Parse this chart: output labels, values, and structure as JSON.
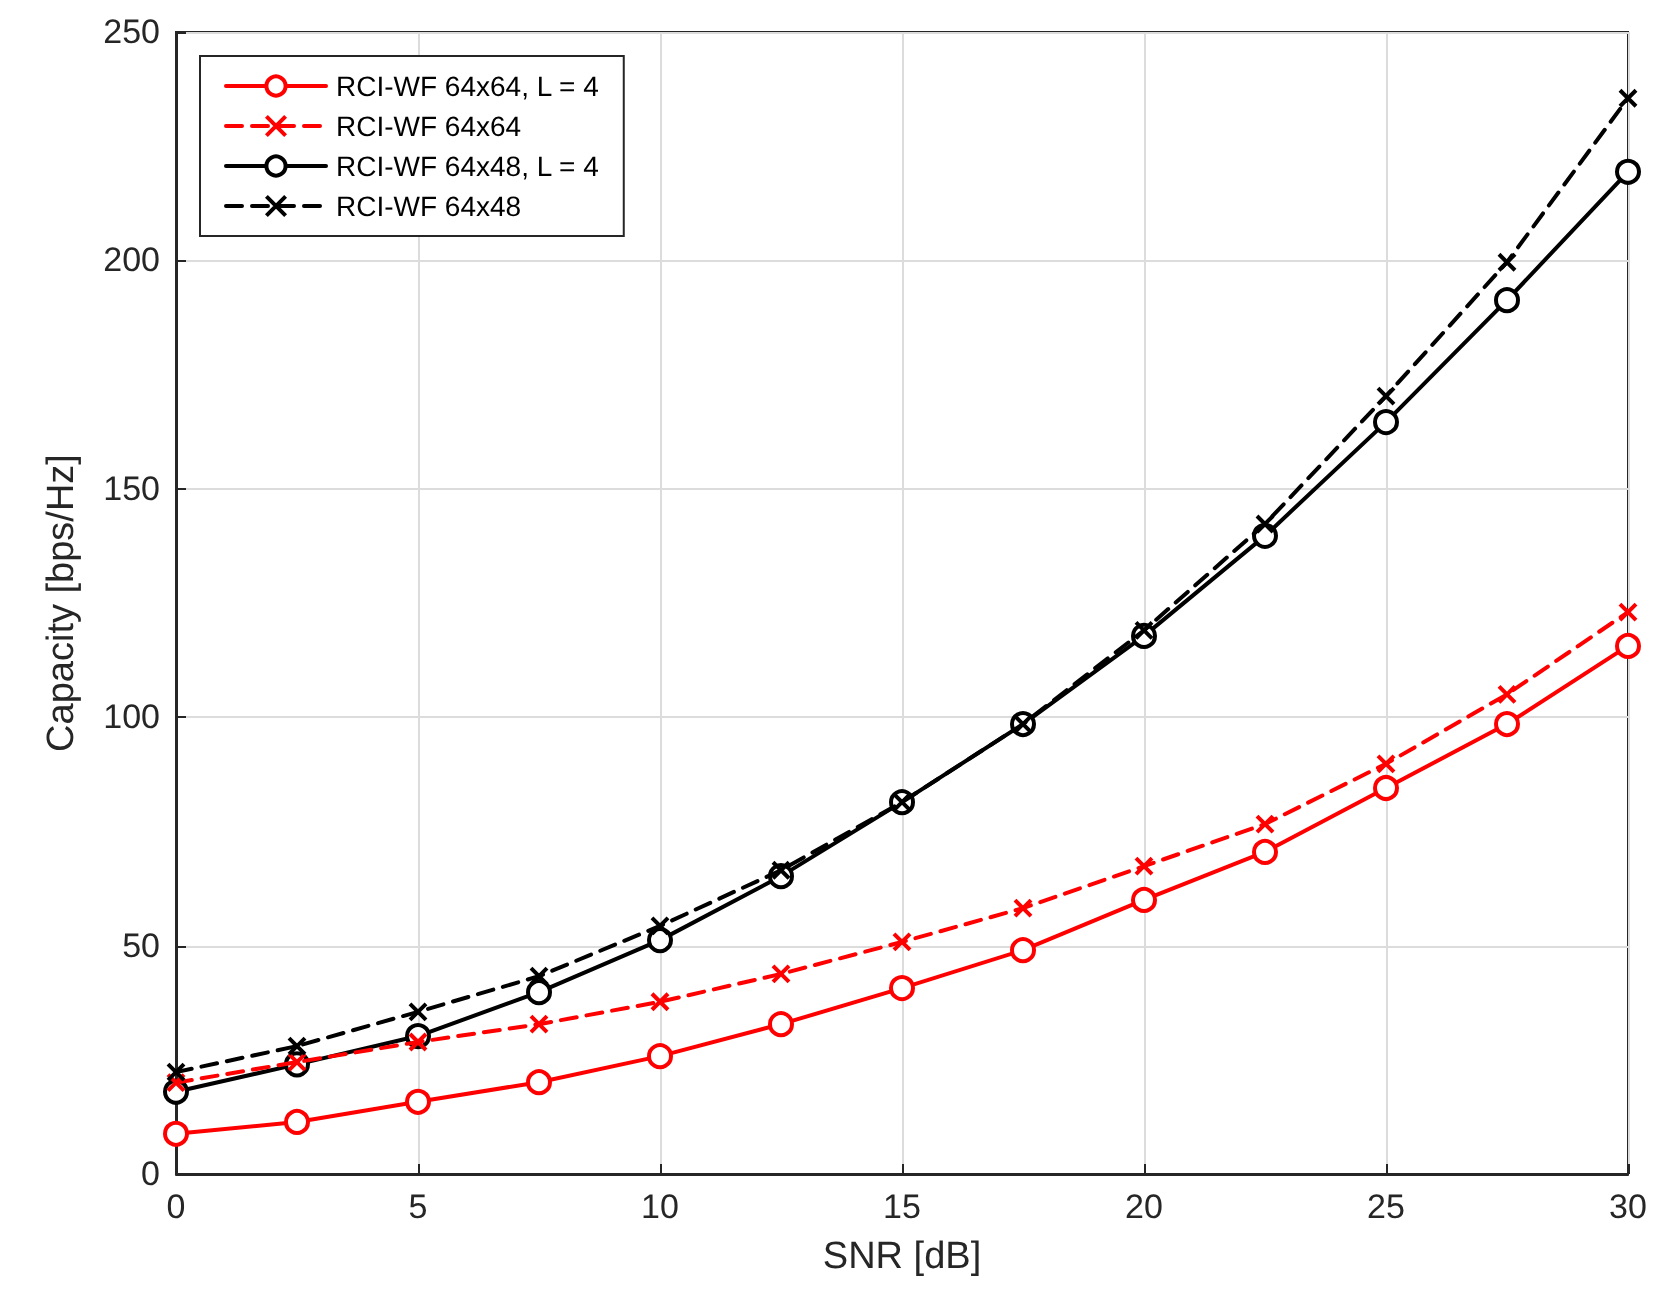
{
  "chart_data": {
    "type": "line",
    "xlabel": "SNR [dB]",
    "ylabel": "Capacity [bps/Hz]",
    "x": [
      0,
      2.5,
      5,
      7.5,
      10,
      12.5,
      15,
      17.5,
      20,
      22.5,
      25,
      27.5,
      30
    ],
    "series": [
      {
        "name": "RCI-WF 64x64, L = 4",
        "color": "#ff0000",
        "marker": "circle",
        "line_style": "solid",
        "values": [
          8.8,
          11.4,
          15.8,
          20.1,
          25.8,
          32.8,
          40.7,
          49,
          60,
          70.5,
          84.5,
          98.5,
          115.6
        ]
      },
      {
        "name": "RCI-WF 64x64",
        "color": "#ff0000",
        "marker": "cross",
        "line_style": "dashed",
        "values": [
          20,
          24.5,
          28.9,
          32.8,
          37.7,
          43.8,
          50.8,
          58.2,
          67.4,
          76.6,
          89.8,
          105,
          123
        ]
      },
      {
        "name": "RCI-WF 64x48, L = 4",
        "color": "#000000",
        "marker": "circle",
        "line_style": "solid",
        "values": [
          18,
          24,
          30.2,
          39.8,
          51.2,
          65.2,
          81.4,
          98.5,
          117.8,
          139.7,
          164.6,
          191.3,
          219.4
        ]
      },
      {
        "name": "RCI-WF 64x48",
        "color": "#000000",
        "marker": "cross",
        "line_style": "dashed",
        "values": [
          22.3,
          28,
          35.5,
          43.3,
          54.3,
          66.5,
          81.4,
          98.5,
          119,
          142.3,
          170.3,
          199.6,
          235.5
        ]
      }
    ],
    "xlim": [
      0,
      30
    ],
    "xticks": [
      0,
      5,
      10,
      15,
      20,
      25,
      30
    ],
    "ylim": [
      0,
      250
    ],
    "yticks": [
      0,
      50,
      100,
      150,
      200,
      250
    ],
    "grid": true,
    "legend": "top left"
  }
}
